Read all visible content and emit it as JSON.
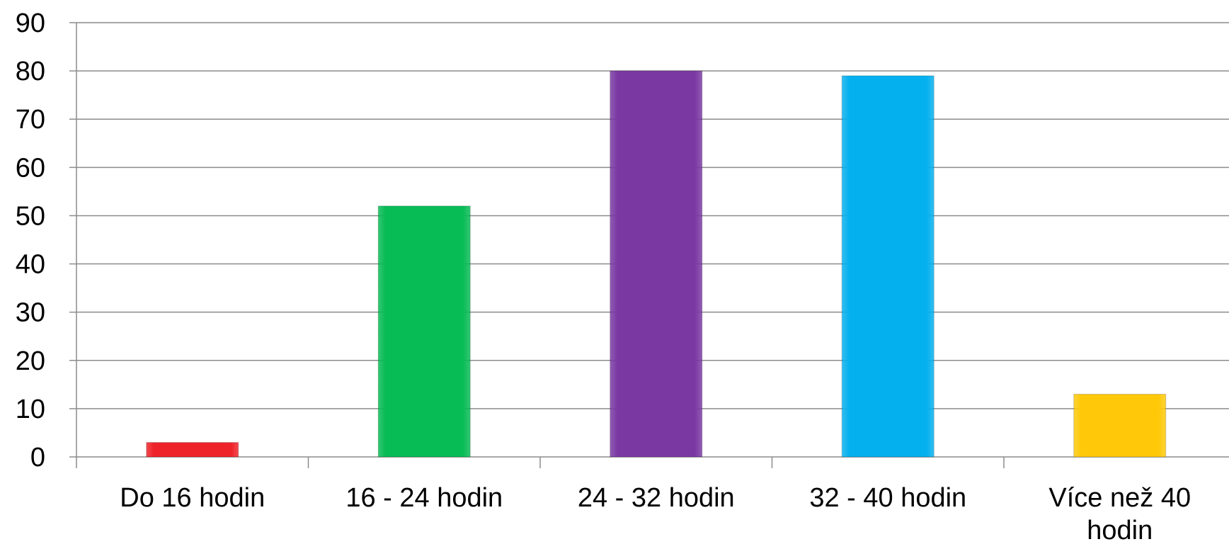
{
  "chart_data": {
    "type": "bar",
    "categories": [
      "Do 16 hodin",
      "16 - 24 hodin",
      "24 - 32 hodin",
      "32 - 40 hodin",
      "Více než 40 hodin"
    ],
    "category_label_lines": [
      [
        "Do 16 hodin"
      ],
      [
        "16 - 24 hodin"
      ],
      [
        "24 - 32 hodin"
      ],
      [
        "32 - 40 hodin"
      ],
      [
        "Více než 40",
        "hodin"
      ]
    ],
    "values": [
      3,
      52,
      80,
      79,
      13
    ],
    "bar_colors": [
      "#ee2229",
      "#07bb55",
      "#7a38a3",
      "#05b0ef",
      "#ffc909"
    ],
    "ylim": [
      0,
      90
    ],
    "ytick_step": 10,
    "ytick_labels": [
      "0",
      "10",
      "20",
      "30",
      "40",
      "50",
      "60",
      "70",
      "80",
      "90"
    ],
    "title": "",
    "xlabel": "",
    "ylabel": "",
    "grid": true,
    "legend": "none"
  }
}
